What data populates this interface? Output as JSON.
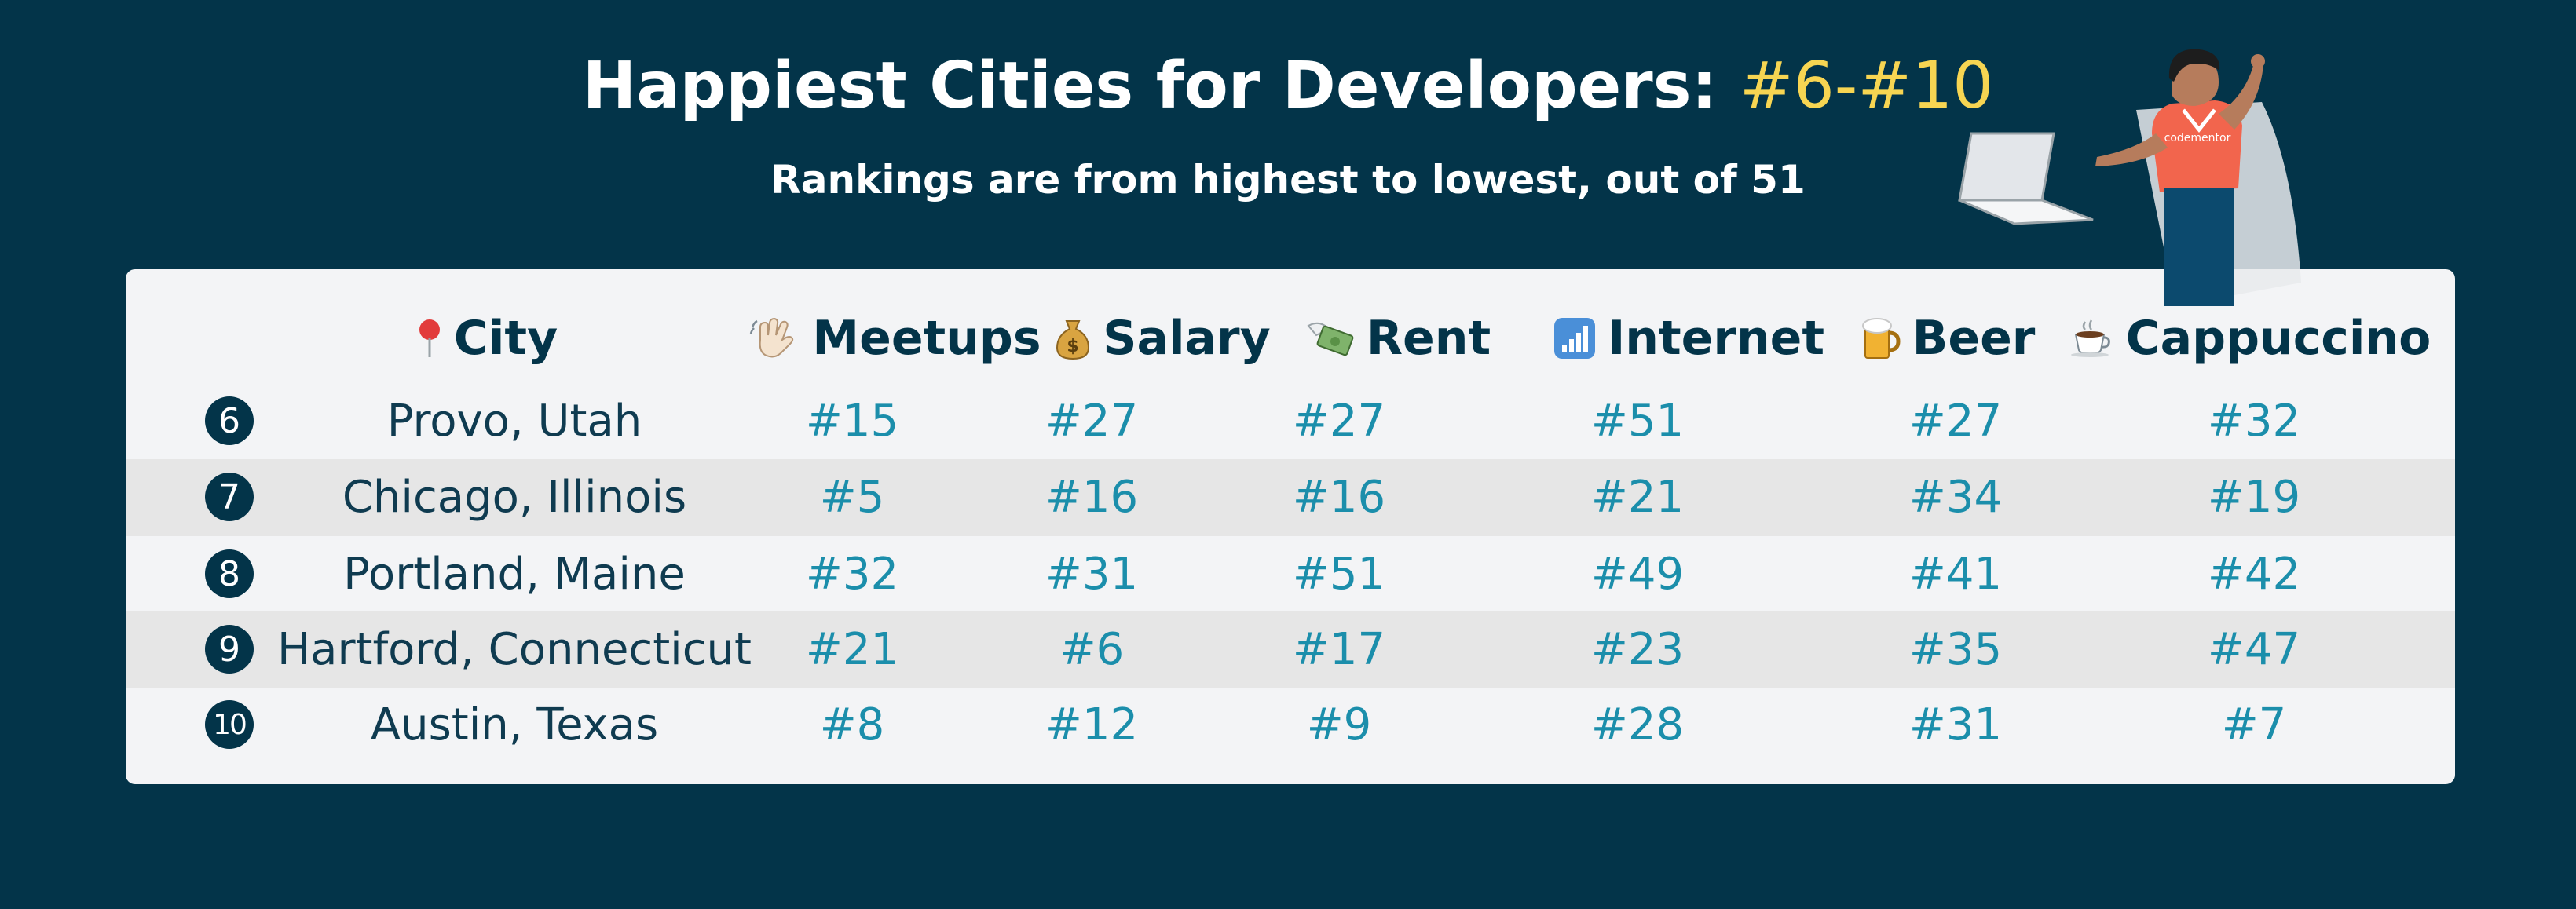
{
  "title": {
    "main": "Happiest Cities for Developers:",
    "accent": "#6-#10"
  },
  "subtitle": "Rankings are from highest to lowest, out of 51",
  "colors": {
    "background": "#033449",
    "accent": "#f7d552",
    "rank": "#1b8eab",
    "card": "#f3f4f6",
    "stripe": "#e6e6e6"
  },
  "chart_data": {
    "type": "table",
    "columns": [
      {
        "icon": "pin-icon",
        "label": "City"
      },
      {
        "icon": "waving-hand-icon",
        "label": "Meetups"
      },
      {
        "icon": "money-bag-icon",
        "label": "Salary"
      },
      {
        "icon": "money-wings-icon",
        "label": "Rent"
      },
      {
        "icon": "signal-bars-icon",
        "label": "Internet"
      },
      {
        "icon": "beer-mug-icon",
        "label": "Beer"
      },
      {
        "icon": "coffee-cup-icon",
        "label": "Cappuccino"
      }
    ],
    "rows": [
      {
        "rank": "6",
        "city": "Provo, Utah",
        "meetups": "#15",
        "salary": "#27",
        "rent": "#27",
        "internet": "#51",
        "beer": "#27",
        "cappuccino": "#32"
      },
      {
        "rank": "7",
        "city": "Chicago, Illinois",
        "meetups": "#5",
        "salary": "#16",
        "rent": "#16",
        "internet": "#21",
        "beer": "#34",
        "cappuccino": "#19"
      },
      {
        "rank": "8",
        "city": "Portland, Maine",
        "meetups": "#32",
        "salary": "#31",
        "rent": "#51",
        "internet": "#49",
        "beer": "#41",
        "cappuccino": "#42"
      },
      {
        "rank": "9",
        "city": "Hartford, Connecticut",
        "meetups": "#21",
        "salary": "#6",
        "rent": "#17",
        "internet": "#23",
        "beer": "#35",
        "cappuccino": "#47"
      },
      {
        "rank": "10",
        "city": "Austin, Texas",
        "meetups": "#8",
        "salary": "#12",
        "rent": "#9",
        "internet": "#28",
        "beer": "#31",
        "cappuccino": "#7"
      }
    ]
  },
  "illustration": {
    "shirt_text": "codementor"
  }
}
